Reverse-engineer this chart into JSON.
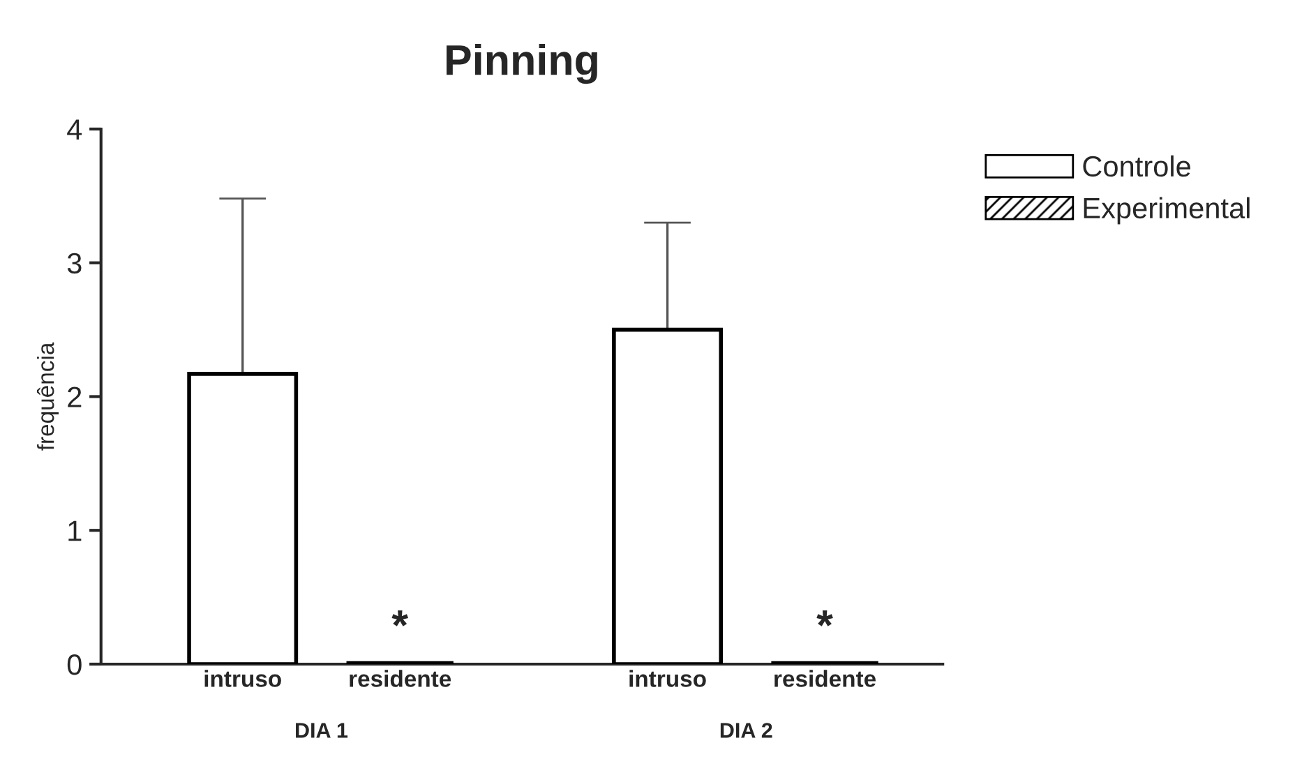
{
  "chart_data": {
    "type": "bar",
    "title": "Pinning",
    "ylabel": "frequência",
    "categories": [
      "intruso",
      "residente",
      "intruso",
      "residente"
    ],
    "series": [
      {
        "name": "Controle",
        "color": "#ffffff",
        "values": [
          2.17,
          null,
          2.5,
          null
        ],
        "errors": [
          [
            2.17,
            3.48
          ],
          null,
          [
            2.5,
            3.3
          ],
          null
        ]
      },
      {
        "name": "Experimental",
        "color": "#000000",
        "values": [
          null,
          0,
          null,
          0
        ]
      }
    ],
    "ylim": [
      0,
      4
    ],
    "yticks": [
      0,
      1,
      2,
      3,
      4
    ],
    "grid": false,
    "legend": "top right",
    "annotations": [
      "*",
      "*",
      "DIA 1",
      "DIA 2"
    ]
  }
}
